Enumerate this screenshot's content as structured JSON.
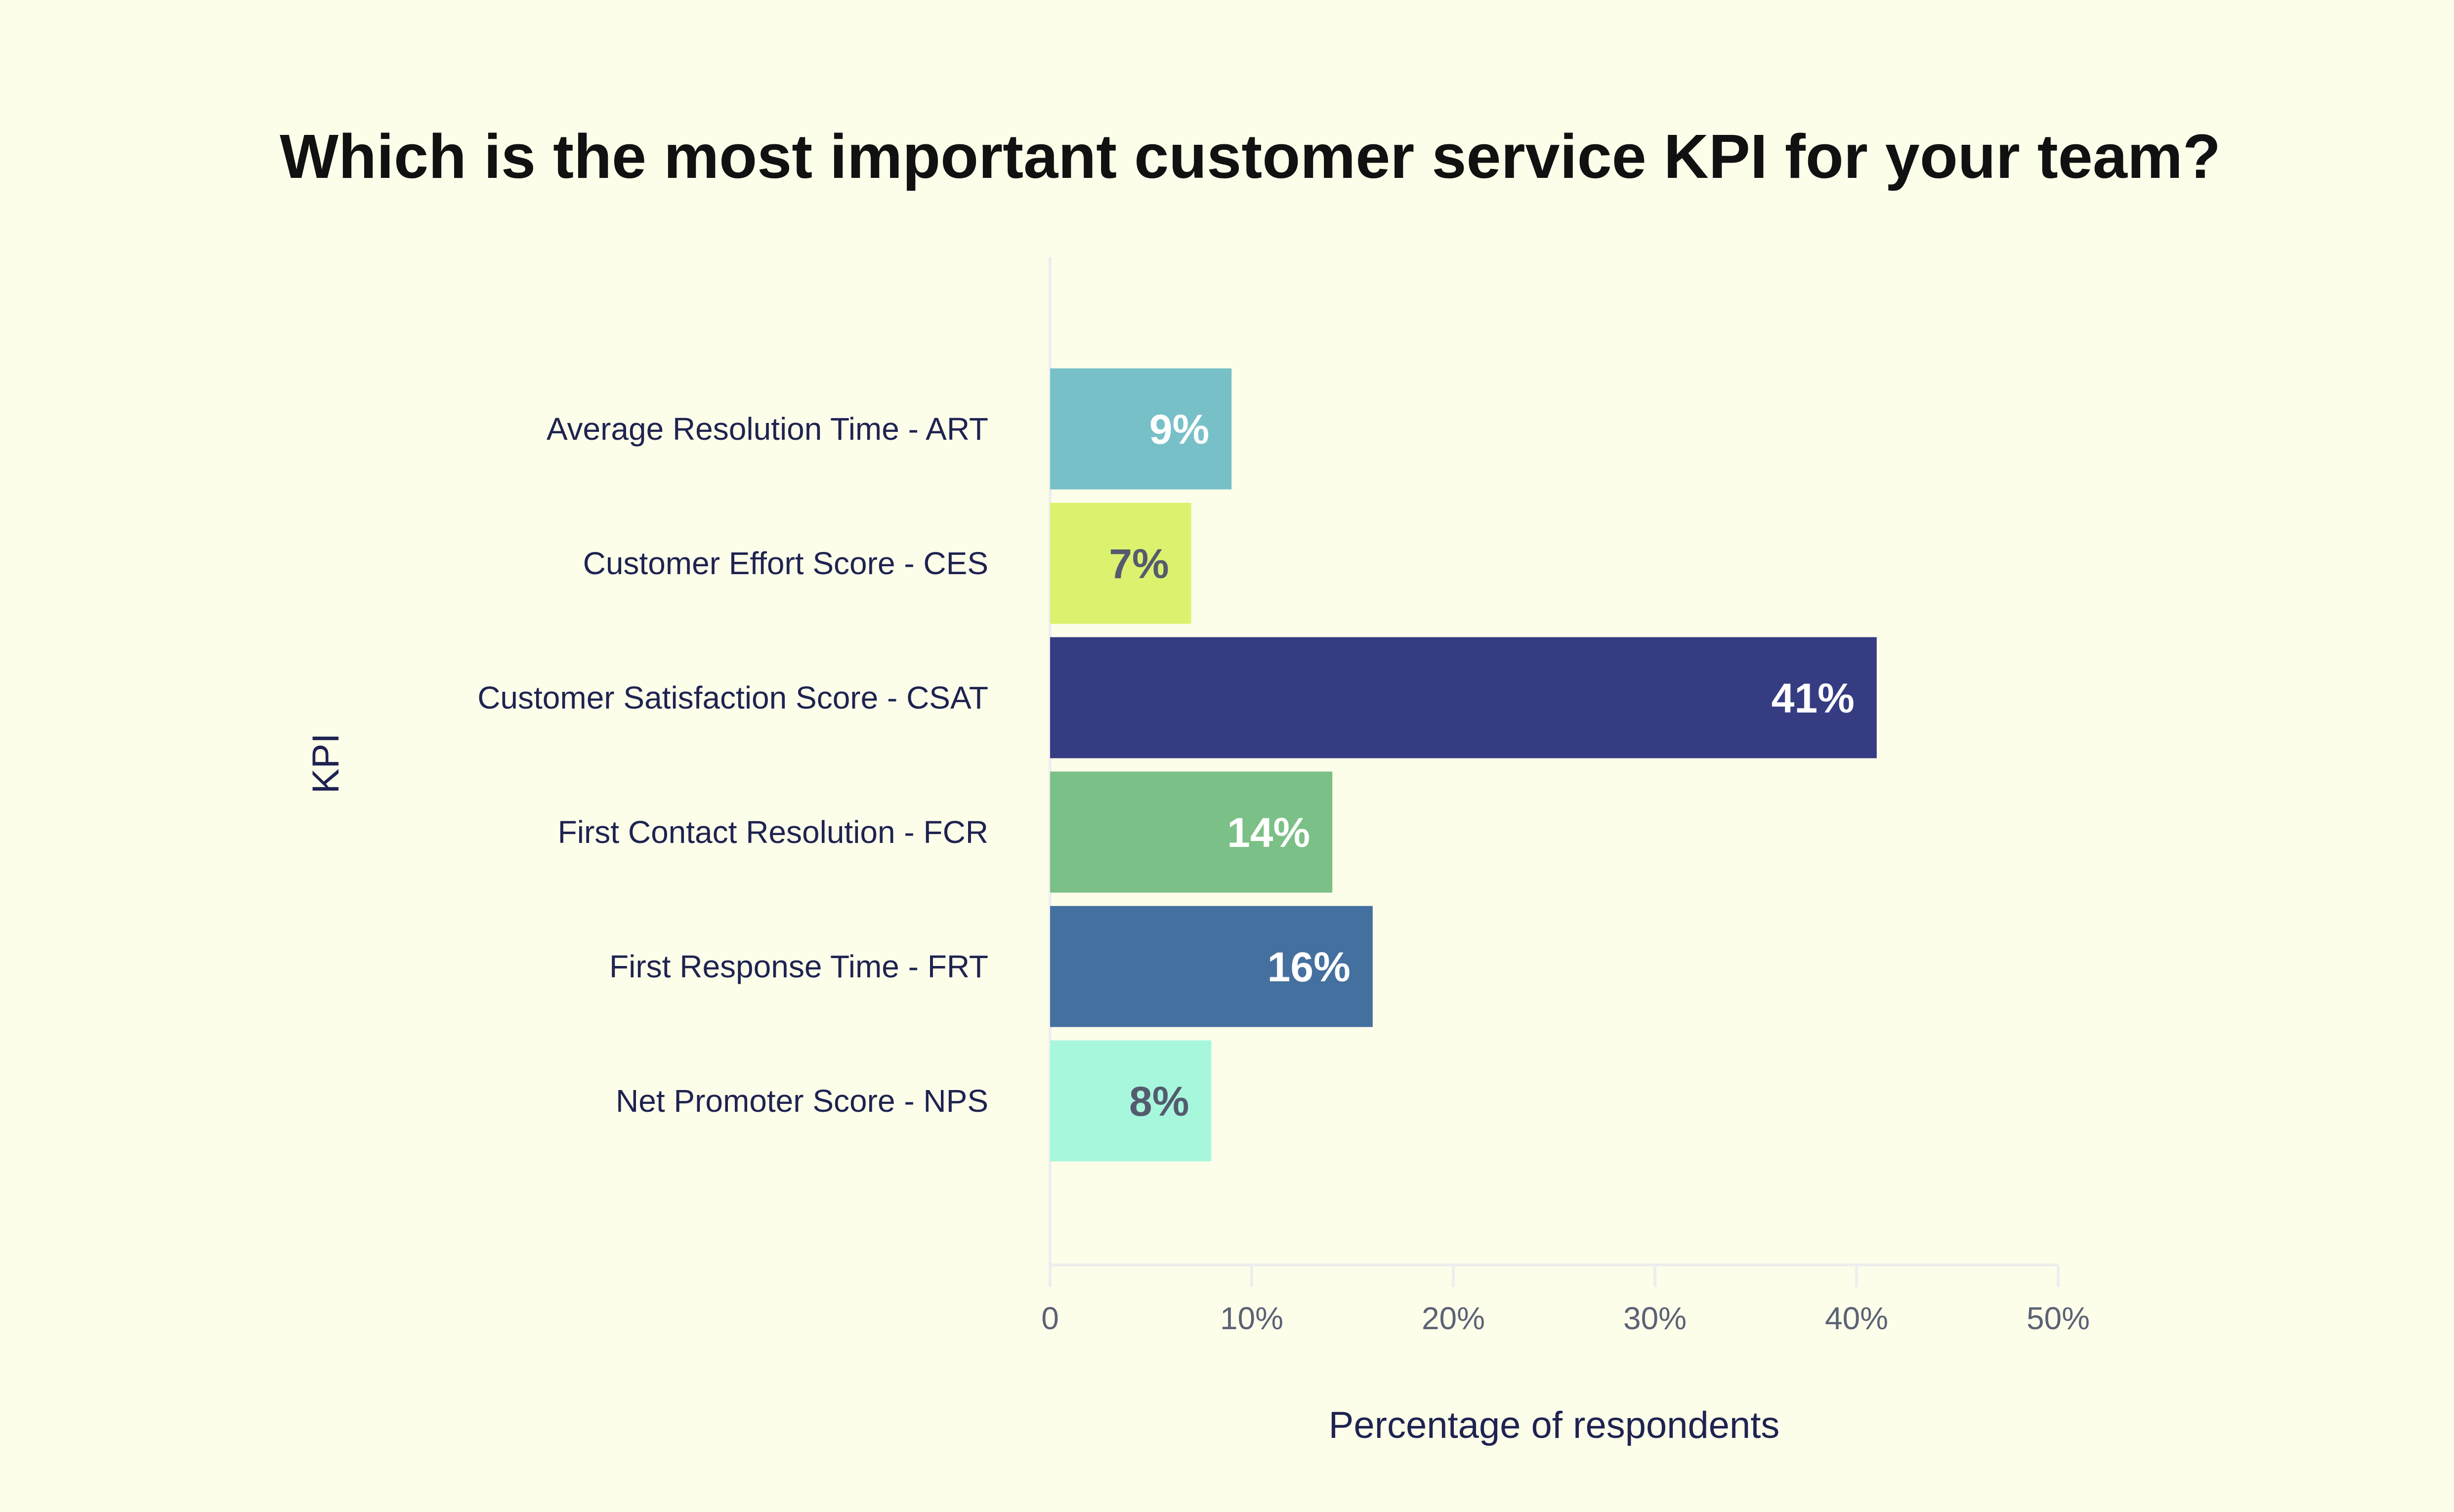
{
  "chart_data": {
    "type": "bar",
    "orientation": "horizontal",
    "title": "Which is the most important customer service KPI for your team?",
    "xlabel": "Percentage of respondents",
    "ylabel": "KPI",
    "xlim": [
      0,
      50
    ],
    "xticks": [
      {
        "value": 0,
        "label": "0"
      },
      {
        "value": 10,
        "label": "10%"
      },
      {
        "value": 20,
        "label": "20%"
      },
      {
        "value": 30,
        "label": "30%"
      },
      {
        "value": 40,
        "label": "40%"
      },
      {
        "value": 50,
        "label": "50%"
      }
    ],
    "grid": false,
    "categories": [
      "Average Resolution Time - ART",
      "Customer Effort Score - CES",
      "Customer Satisfaction Score - CSAT",
      "First Contact Resolution - FCR",
      "First Response Time - FRT",
      "Net Promoter Score - NPS"
    ],
    "values": [
      9,
      7,
      41,
      14,
      16,
      8
    ],
    "data_labels": [
      "9%",
      "7%",
      "41%",
      "14%",
      "16%",
      "8%"
    ],
    "colors": [
      "#77c0c8",
      "#dcf26e",
      "#363c82",
      "#7bc087",
      "#44709f",
      "#a6f7dc"
    ],
    "label_colors": [
      "#ffffff",
      "#555b6e",
      "#ffffff",
      "#ffffff",
      "#ffffff",
      "#555b6e"
    ],
    "background_color": "#fdfeea",
    "axis_color": "#eeeeee"
  }
}
